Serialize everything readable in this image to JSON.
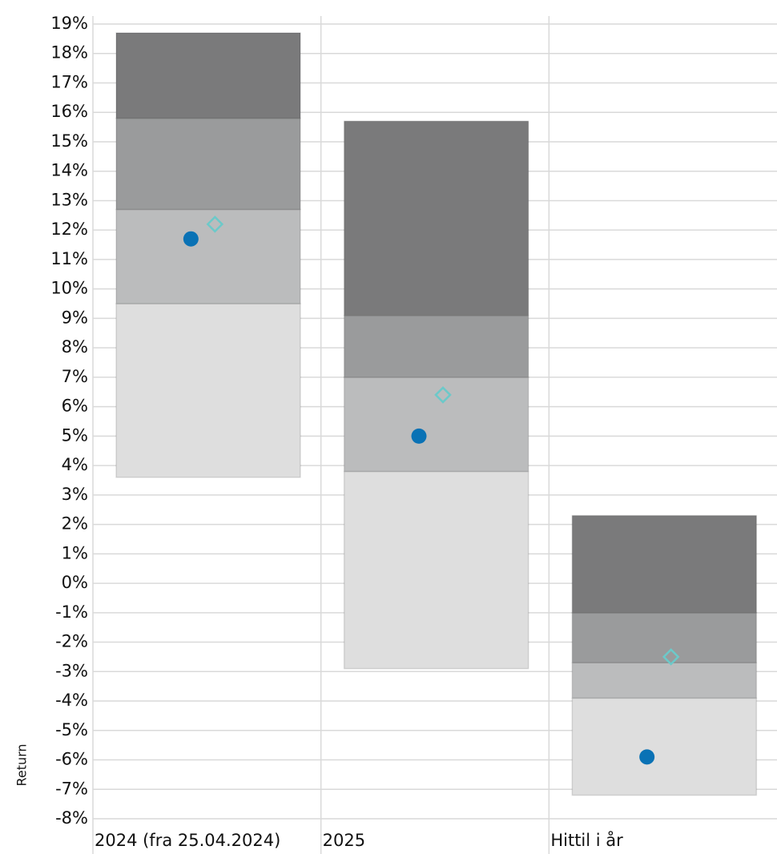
{
  "chart_data": {
    "type": "bar",
    "y_label": "Return",
    "categories": [
      "2024 (fra 25.04.2024)",
      "2025",
      "Hittil i år"
    ],
    "bases": [
      3.6,
      -2.9,
      -7.2
    ],
    "series": [
      {
        "color": "#dedede",
        "values": [
          5.9,
          6.7,
          3.3
        ]
      },
      {
        "color": "#bbbcbd",
        "values": [
          3.2,
          3.2,
          1.2
        ]
      },
      {
        "color": "#9a9b9c",
        "values": [
          3.1,
          2.1,
          1.7
        ]
      },
      {
        "color": "#7a7a7b",
        "values": [
          2.9,
          6.6,
          3.3
        ]
      }
    ],
    "points": [
      {
        "marker": "circle",
        "color": "#0a72b5",
        "values": [
          11.7,
          5.0,
          -5.9
        ]
      },
      {
        "marker": "diamond",
        "color": "#6cc9c9",
        "values": [
          12.2,
          6.4,
          -2.5
        ]
      }
    ],
    "ylim": [
      -8,
      19
    ],
    "yticks": [
      {
        "value": -8,
        "label": "-8%"
      },
      {
        "value": -7,
        "label": "-7%"
      },
      {
        "value": -6,
        "label": "-6%"
      },
      {
        "value": -5,
        "label": "-5%"
      },
      {
        "value": -4,
        "label": "-4%"
      },
      {
        "value": -3,
        "label": "-3%"
      },
      {
        "value": -2,
        "label": "-2%"
      },
      {
        "value": -1,
        "label": "-1%"
      },
      {
        "value": 0,
        "label": "0%"
      },
      {
        "value": 1,
        "label": "1%"
      },
      {
        "value": 2,
        "label": "2%"
      },
      {
        "value": 3,
        "label": "3%"
      },
      {
        "value": 4,
        "label": "4%"
      },
      {
        "value": 5,
        "label": "5%"
      },
      {
        "value": 6,
        "label": "6%"
      },
      {
        "value": 7,
        "label": "7%"
      },
      {
        "value": 8,
        "label": "8%"
      },
      {
        "value": 9,
        "label": "9%"
      },
      {
        "value": 10,
        "label": "10%"
      },
      {
        "value": 11,
        "label": "11%"
      },
      {
        "value": 12,
        "label": "12%"
      },
      {
        "value": 13,
        "label": "13%"
      },
      {
        "value": 14,
        "label": "14%"
      },
      {
        "value": 15,
        "label": "15%"
      },
      {
        "value": 16,
        "label": "16%"
      },
      {
        "value": 17,
        "label": "17%"
      },
      {
        "value": 18,
        "label": "18%"
      },
      {
        "value": 19,
        "label": "19%"
      }
    ],
    "grid": true
  }
}
